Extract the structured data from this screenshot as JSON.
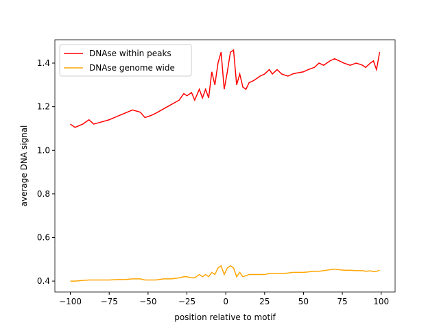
{
  "chart_data": {
    "type": "line",
    "xlabel": "position relative to motif",
    "ylabel": "average DNA signal",
    "x": [
      -100,
      -97,
      -92,
      -88,
      -85,
      -80,
      -75,
      -70,
      -65,
      -60,
      -55,
      -52,
      -48,
      -45,
      -40,
      -35,
      -30,
      -27,
      -25,
      -22,
      -20,
      -17,
      -15,
      -13,
      -11,
      -9,
      -7,
      -5,
      -3,
      -1,
      1,
      3,
      5,
      7,
      9,
      11,
      13,
      15,
      18,
      22,
      25,
      28,
      30,
      33,
      36,
      40,
      43,
      46,
      50,
      53,
      57,
      60,
      63,
      67,
      70,
      73,
      76,
      80,
      84,
      88,
      90,
      93,
      95,
      97,
      99
    ],
    "series": [
      {
        "name": "DNAse within peaks",
        "color": "#ff0000",
        "values": [
          1.12,
          1.105,
          1.12,
          1.14,
          1.12,
          1.13,
          1.14,
          1.155,
          1.17,
          1.185,
          1.175,
          1.15,
          1.16,
          1.17,
          1.19,
          1.21,
          1.23,
          1.26,
          1.25,
          1.265,
          1.23,
          1.28,
          1.24,
          1.28,
          1.24,
          1.36,
          1.3,
          1.4,
          1.45,
          1.28,
          1.36,
          1.45,
          1.46,
          1.3,
          1.35,
          1.29,
          1.28,
          1.31,
          1.32,
          1.34,
          1.35,
          1.37,
          1.35,
          1.37,
          1.35,
          1.34,
          1.35,
          1.355,
          1.36,
          1.37,
          1.38,
          1.4,
          1.39,
          1.41,
          1.42,
          1.41,
          1.4,
          1.39,
          1.4,
          1.39,
          1.38,
          1.4,
          1.41,
          1.37,
          1.45
        ]
      },
      {
        "name": "DNAse genome wide",
        "color": "#ffa500",
        "values": [
          0.4,
          0.4,
          0.403,
          0.405,
          0.405,
          0.405,
          0.405,
          0.407,
          0.407,
          0.41,
          0.41,
          0.405,
          0.405,
          0.405,
          0.41,
          0.41,
          0.415,
          0.42,
          0.42,
          0.415,
          0.415,
          0.43,
          0.42,
          0.43,
          0.42,
          0.44,
          0.43,
          0.46,
          0.47,
          0.43,
          0.46,
          0.47,
          0.46,
          0.42,
          0.44,
          0.42,
          0.425,
          0.43,
          0.43,
          0.43,
          0.43,
          0.435,
          0.435,
          0.435,
          0.435,
          0.437,
          0.44,
          0.44,
          0.44,
          0.442,
          0.445,
          0.445,
          0.448,
          0.452,
          0.455,
          0.452,
          0.45,
          0.45,
          0.448,
          0.448,
          0.445,
          0.447,
          0.443,
          0.445,
          0.45
        ]
      }
    ],
    "xlim": [
      -109.95,
      108.95
    ],
    "ylim": [
      0.35,
      1.507
    ],
    "xticks": [
      {
        "value": -100,
        "label": "−100"
      },
      {
        "value": -75,
        "label": "−75"
      },
      {
        "value": -50,
        "label": "−50"
      },
      {
        "value": -25,
        "label": "−25"
      },
      0,
      25,
      50,
      75,
      100
    ],
    "yticks": [
      0.4,
      0.6,
      0.8,
      {
        "value": 1,
        "label": "1.0"
      },
      1.2,
      1.4
    ],
    "legend": "upper left"
  }
}
